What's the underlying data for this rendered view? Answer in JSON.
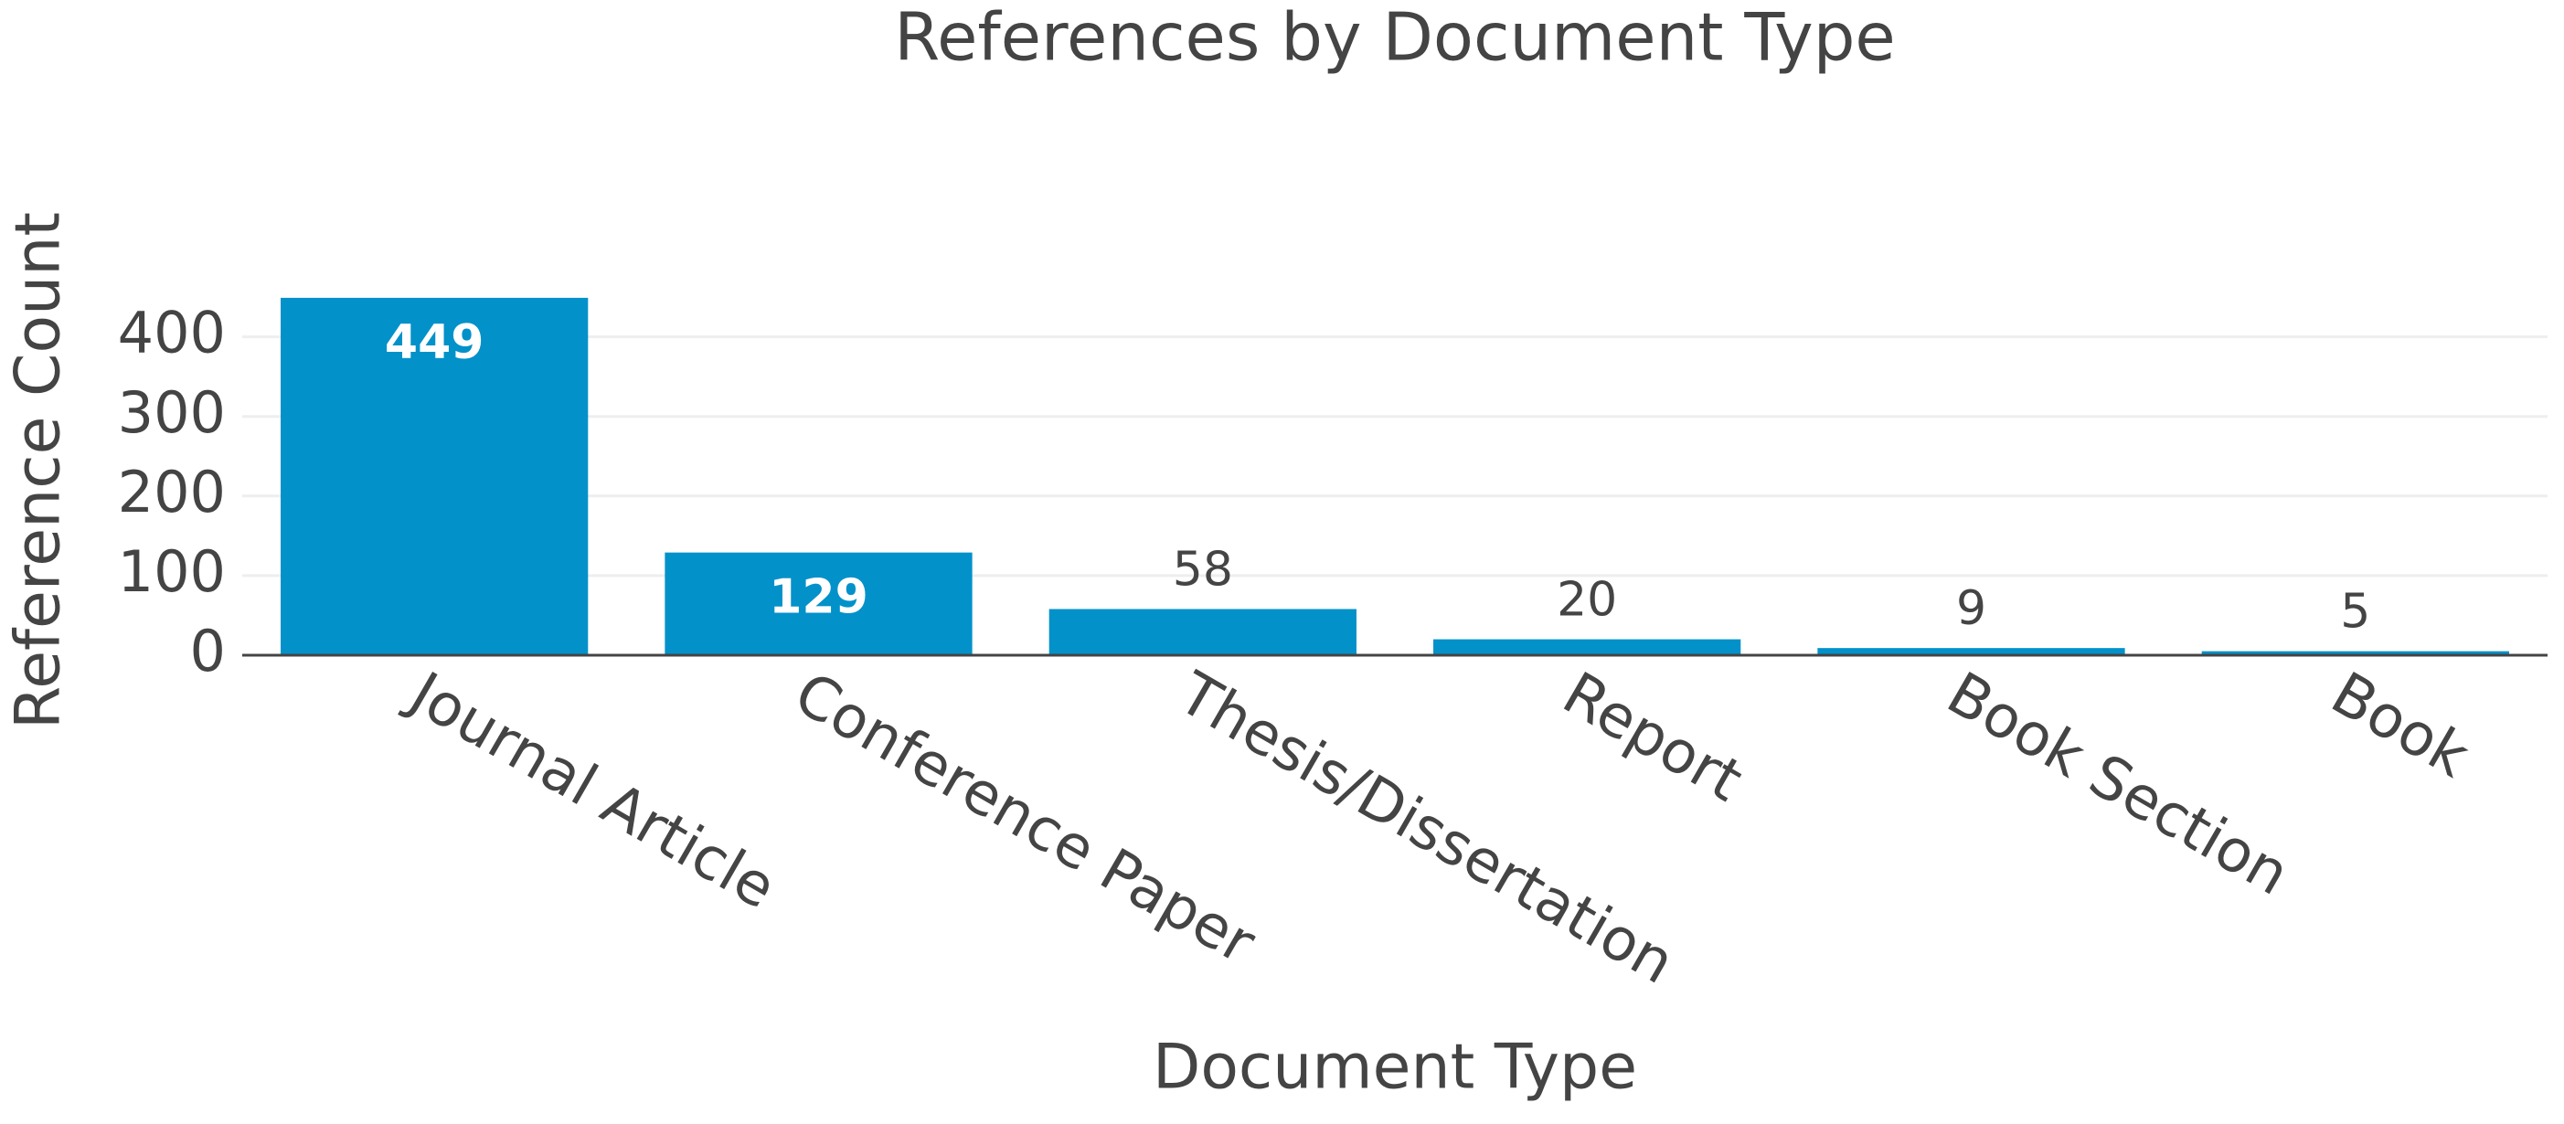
{
  "chart_data": {
    "type": "bar",
    "title": "References by Document Type",
    "x_label": "Document Type",
    "y_label": "Reference Count",
    "categories": [
      "Journal Article",
      "Conference Paper",
      "Thesis/Dissertation",
      "Report",
      "Book Section",
      "Book"
    ],
    "values": [
      449,
      129,
      58,
      20,
      9,
      5
    ],
    "color": "#0391c9",
    "ylim": [
      0,
      473
    ],
    "yticks": [
      0,
      100,
      200,
      300,
      400
    ],
    "grid": true
  }
}
